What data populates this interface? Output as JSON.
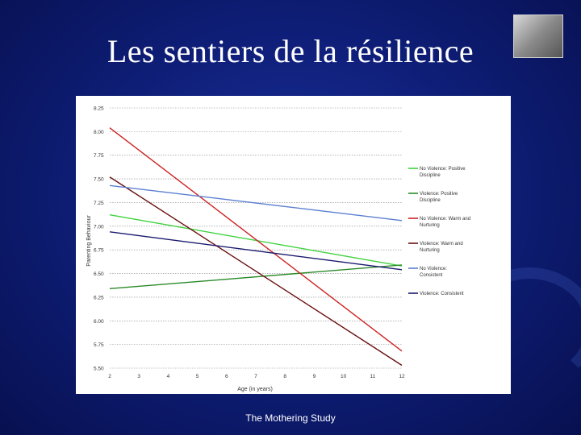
{
  "slide": {
    "title": "Les sentiers de la résilience",
    "footer": "The Mothering Study"
  },
  "chart_data": {
    "type": "line",
    "xlabel": "Age (in years)",
    "ylabel": "Parenting Behaviour",
    "x": [
      2,
      3,
      4,
      5,
      6,
      7,
      8,
      9,
      10,
      11,
      12
    ],
    "xlim": [
      2,
      12
    ],
    "ylim": [
      5.5,
      8.25
    ],
    "y_ticks": [
      "8.25",
      "8.00",
      "7.75",
      "7.50",
      "7.25",
      "7.00",
      "6.75",
      "6.50",
      "6.25",
      "6.00",
      "5.75",
      "5.50"
    ],
    "grid": "horizontal",
    "legend_position": "right",
    "series": [
      {
        "name": "No Violence: Positive Discipline",
        "color": "#3fd23f",
        "start": [
          2,
          7.12
        ],
        "end": [
          12,
          6.58
        ]
      },
      {
        "name": "Violence: Positive Discipline",
        "color": "#2a8a2a",
        "start": [
          2,
          6.34
        ],
        "end": [
          12,
          6.59
        ]
      },
      {
        "name": "No Violence: Warm and Nurturing",
        "color": "#cc2222",
        "start": [
          2,
          8.04
        ],
        "end": [
          12,
          5.68
        ]
      },
      {
        "name": "Violence: Warm and Nurturing",
        "color": "#6a1010",
        "start": [
          2,
          7.52
        ],
        "end": [
          12,
          5.53
        ]
      },
      {
        "name": "No Violence: Consistent",
        "color": "#5b7fd0",
        "start": [
          2,
          7.43
        ],
        "end": [
          12,
          7.06
        ]
      },
      {
        "name": "Violence: Consistent",
        "color": "#1a1a70",
        "start": [
          2,
          6.94
        ],
        "end": [
          12,
          6.54
        ]
      }
    ]
  }
}
